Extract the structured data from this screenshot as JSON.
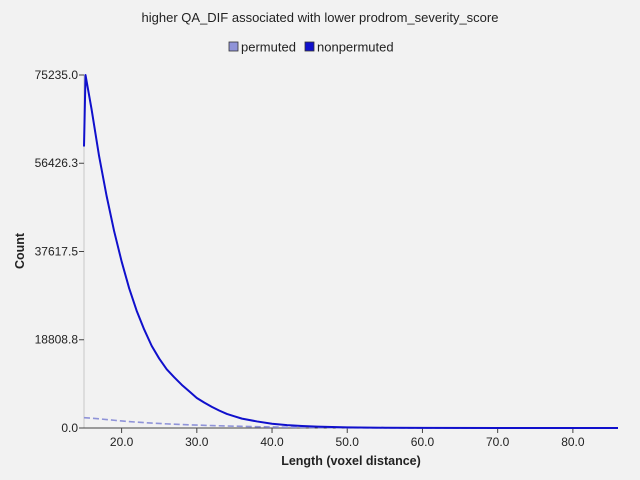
{
  "chart_data": {
    "type": "line",
    "title": "higher QA_DIF associated with lower prodrom_severity_score",
    "xlabel": "Length (voxel distance)",
    "ylabel": "Count",
    "xlim": [
      15,
      86
    ],
    "ylim": [
      0,
      75235.0
    ],
    "xticks": [
      20,
      30,
      40,
      50,
      60,
      70,
      80
    ],
    "xtick_labels": [
      "20.0",
      "30.0",
      "40.0",
      "50.0",
      "60.0",
      "70.0",
      "80.0"
    ],
    "yticks": [
      0,
      18808.8,
      37617.5,
      56426.3,
      75235.0
    ],
    "ytick_labels": [
      "0.0",
      "18808.8",
      "37617.5",
      "56426.3",
      "75235.0"
    ],
    "grid": false,
    "legend_position": "top-center",
    "series": [
      {
        "name": "permuted",
        "color": "#8f93d8",
        "dashed": true,
        "x": [
          15,
          16,
          17,
          18,
          19,
          20,
          22,
          24,
          26,
          28,
          30,
          32,
          34,
          36,
          38,
          40,
          42,
          45,
          50,
          60,
          70,
          80,
          86
        ],
        "y": [
          2200,
          2100,
          1950,
          1800,
          1650,
          1500,
          1250,
          1050,
          880,
          740,
          620,
          520,
          430,
          350,
          280,
          220,
          170,
          110,
          50,
          15,
          5,
          2,
          0
        ]
      },
      {
        "name": "nonpermuted",
        "color": "#1010cc",
        "dashed": false,
        "x": [
          15,
          15.2,
          16,
          17,
          18,
          19,
          20,
          21,
          22,
          23,
          24,
          25,
          26,
          27,
          28,
          29,
          30,
          31,
          32,
          33,
          34,
          35,
          36,
          38,
          40,
          42,
          44,
          46,
          50,
          55,
          60,
          70,
          80,
          86
        ],
        "y": [
          60000,
          75235,
          68000,
          58000,
          49500,
          42000,
          35500,
          29800,
          25000,
          21000,
          17500,
          14800,
          12500,
          10800,
          9200,
          7800,
          6400,
          5400,
          4500,
          3700,
          3000,
          2500,
          2000,
          1400,
          900,
          620,
          430,
          290,
          140,
          60,
          25,
          8,
          3,
          1
        ]
      }
    ]
  }
}
